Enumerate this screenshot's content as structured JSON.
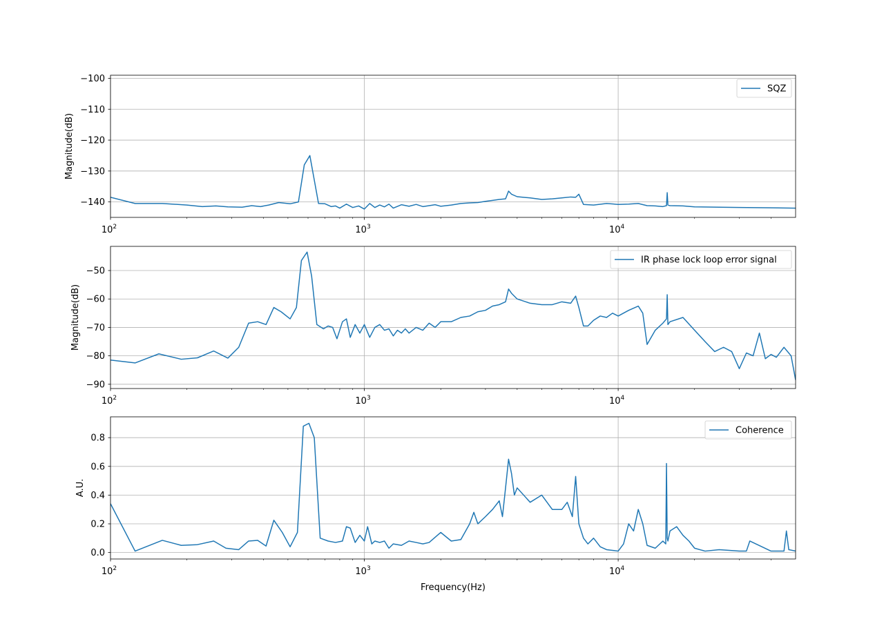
{
  "chart_data": [
    {
      "type": "line",
      "xscale": "log",
      "xlim": [
        100,
        50000
      ],
      "ylim": [
        -145,
        -99
      ],
      "ylabel": "Magnitude(dB)",
      "xlabel": "",
      "grid": true,
      "legend": "top-right",
      "color": "#1f77b4",
      "yticks": [
        -100,
        -110,
        -120,
        -130,
        -140
      ],
      "ytick_labels": [
        "−100",
        "−110",
        "−120",
        "−130",
        "−140"
      ],
      "xticks": [
        100,
        1000,
        10000
      ],
      "xtick_labels": [
        [
          "10",
          "2"
        ],
        [
          "10",
          "3"
        ],
        [
          "10",
          "4"
        ]
      ],
      "series": [
        {
          "name": "SQZ",
          "x": [
            100,
            125,
            160,
            200,
            230,
            260,
            290,
            330,
            360,
            390,
            420,
            460,
            510,
            550,
            580,
            610,
            660,
            700,
            740,
            770,
            800,
            850,
            900,
            950,
            1000,
            1050,
            1100,
            1150,
            1200,
            1250,
            1300,
            1400,
            1500,
            1600,
            1700,
            1800,
            1900,
            2000,
            2200,
            2400,
            2600,
            2800,
            3000,
            3200,
            3400,
            3600,
            3700,
            3800,
            4000,
            4500,
            5000,
            5500,
            6000,
            6500,
            6800,
            7000,
            7300,
            8000,
            9000,
            10000,
            11000,
            12000,
            13000,
            14000,
            15000,
            15500,
            15600,
            15700,
            16000,
            18000,
            20000,
            25000,
            30000,
            40000,
            50000
          ],
          "y": [
            -138.5,
            -140.5,
            -140.5,
            -141,
            -141.5,
            -141.3,
            -141.6,
            -141.7,
            -141.2,
            -141.5,
            -141,
            -140.2,
            -140.6,
            -140,
            -128,
            -125,
            -140.5,
            -140.6,
            -141.5,
            -141.3,
            -142,
            -140.7,
            -141.8,
            -141.3,
            -142.3,
            -140.5,
            -141.8,
            -141,
            -141.6,
            -140.7,
            -142,
            -140.9,
            -141.4,
            -140.8,
            -141.5,
            -141.2,
            -140.9,
            -141.4,
            -141,
            -140.5,
            -140.3,
            -140.2,
            -139.8,
            -139.5,
            -139.2,
            -139,
            -136.5,
            -137.5,
            -138.3,
            -138.7,
            -139.2,
            -139,
            -138.7,
            -138.4,
            -138.5,
            -137.5,
            -140.8,
            -141,
            -140.5,
            -140.8,
            -140.7,
            -140.5,
            -141.2,
            -141.3,
            -141.5,
            -141.2,
            -137,
            -141,
            -141.2,
            -141.3,
            -141.6,
            -141.7,
            -141.8,
            -141.9,
            -142
          ]
        }
      ]
    },
    {
      "type": "line",
      "xscale": "log",
      "xlim": [
        100,
        50000
      ],
      "ylim": [
        -91.5,
        -41.5
      ],
      "ylabel": "Magnitude(dB)",
      "xlabel": "",
      "grid": true,
      "legend": "top-right",
      "color": "#1f77b4",
      "yticks": [
        -50,
        -60,
        -70,
        -80,
        -90
      ],
      "ytick_labels": [
        "−50",
        "−60",
        "−70",
        "−80",
        "−90"
      ],
      "xticks": [
        100,
        1000,
        10000
      ],
      "xtick_labels": [
        [
          "10",
          "2"
        ],
        [
          "10",
          "3"
        ],
        [
          "10",
          "4"
        ]
      ],
      "series": [
        {
          "name": "IR phase lock loop error signal",
          "x": [
            100,
            125,
            155,
            190,
            220,
            255,
            290,
            320,
            350,
            380,
            410,
            440,
            470,
            510,
            540,
            565,
            595,
            620,
            650,
            690,
            720,
            750,
            780,
            820,
            850,
            880,
            920,
            960,
            1000,
            1050,
            1100,
            1150,
            1200,
            1250,
            1300,
            1350,
            1400,
            1450,
            1500,
            1600,
            1700,
            1800,
            1900,
            2000,
            2200,
            2400,
            2600,
            2800,
            3000,
            3200,
            3400,
            3600,
            3700,
            3800,
            4000,
            4500,
            5000,
            5500,
            6000,
            6500,
            6800,
            7000,
            7300,
            7600,
            8000,
            8500,
            9000,
            9500,
            10000,
            11000,
            12000,
            12500,
            13000,
            14000,
            15000,
            15500,
            15600,
            15700,
            16000,
            18000,
            20000,
            22000,
            24000,
            26000,
            28000,
            30000,
            32000,
            34000,
            36000,
            38000,
            40000,
            42000,
            45000,
            48000,
            50000
          ],
          "y": [
            -81.5,
            -82.5,
            -79.3,
            -81.2,
            -80.7,
            -78.3,
            -80.8,
            -77,
            -68.5,
            -68,
            -69,
            -63,
            -64.5,
            -67,
            -63,
            -46.5,
            -43.5,
            -52,
            -69,
            -70.5,
            -69.5,
            -70,
            -74,
            -68,
            -67,
            -73.5,
            -69,
            -72,
            -69,
            -73.5,
            -70,
            -69,
            -71,
            -70.5,
            -73,
            -71,
            -72,
            -70.5,
            -72,
            -70,
            -71,
            -68.5,
            -70,
            -68,
            -68,
            -66.5,
            -66,
            -64.5,
            -64,
            -62.5,
            -62,
            -61,
            -56.5,
            -58,
            -60,
            -61.5,
            -62,
            -62,
            -61,
            -61.5,
            -59,
            -63,
            -69.5,
            -69.5,
            -67.5,
            -66,
            -66.5,
            -65,
            -66,
            -64,
            -62.5,
            -65,
            -76,
            -71,
            -68.5,
            -67,
            -58.5,
            -69,
            -68,
            -66.5,
            -71,
            -75,
            -78.5,
            -77,
            -78.5,
            -84.5,
            -79,
            -80,
            -72,
            -81,
            -79.5,
            -80.5,
            -77,
            -80,
            -88.5
          ]
        }
      ]
    },
    {
      "type": "line",
      "xscale": "log",
      "xlim": [
        100,
        50000
      ],
      "ylim": [
        -0.045,
        0.945
      ],
      "ylabel": "A.U.",
      "xlabel": "Frequency(Hz)",
      "grid": true,
      "legend": "top-right",
      "color": "#1f77b4",
      "yticks": [
        0.0,
        0.2,
        0.4,
        0.6,
        0.8
      ],
      "ytick_labels": [
        "0.0",
        "0.2",
        "0.4",
        "0.6",
        "0.8"
      ],
      "xticks": [
        100,
        1000,
        10000
      ],
      "xtick_labels": [
        [
          "10",
          "2"
        ],
        [
          "10",
          "3"
        ],
        [
          "10",
          "4"
        ]
      ],
      "series": [
        {
          "name": "Coherence",
          "x": [
            100,
            125,
            160,
            190,
            220,
            255,
            285,
            320,
            350,
            380,
            410,
            440,
            475,
            510,
            545,
            575,
            605,
            635,
            670,
            720,
            770,
            820,
            850,
            880,
            920,
            960,
            1000,
            1030,
            1070,
            1100,
            1150,
            1200,
            1250,
            1300,
            1400,
            1500,
            1600,
            1700,
            1800,
            2000,
            2200,
            2400,
            2600,
            2700,
            2800,
            3000,
            3200,
            3400,
            3500,
            3600,
            3700,
            3800,
            3900,
            4000,
            4500,
            5000,
            5500,
            6000,
            6300,
            6600,
            6800,
            7000,
            7300,
            7600,
            8000,
            8500,
            9000,
            10000,
            10500,
            11000,
            11500,
            12000,
            12500,
            13000,
            14000,
            15000,
            15400,
            15500,
            15600,
            15700,
            16000,
            17000,
            18000,
            19000,
            20000,
            22000,
            25000,
            30000,
            32000,
            33000,
            40000,
            45000,
            46000,
            47000,
            50000
          ],
          "y": [
            0.34,
            0.01,
            0.085,
            0.05,
            0.055,
            0.08,
            0.03,
            0.02,
            0.08,
            0.085,
            0.045,
            0.225,
            0.14,
            0.04,
            0.14,
            0.88,
            0.9,
            0.8,
            0.1,
            0.08,
            0.07,
            0.08,
            0.18,
            0.17,
            0.07,
            0.12,
            0.08,
            0.18,
            0.06,
            0.08,
            0.07,
            0.08,
            0.03,
            0.06,
            0.05,
            0.08,
            0.07,
            0.06,
            0.07,
            0.14,
            0.08,
            0.09,
            0.2,
            0.28,
            0.2,
            0.25,
            0.3,
            0.36,
            0.25,
            0.45,
            0.65,
            0.55,
            0.4,
            0.45,
            0.35,
            0.4,
            0.3,
            0.3,
            0.35,
            0.25,
            0.53,
            0.2,
            0.1,
            0.06,
            0.1,
            0.04,
            0.02,
            0.01,
            0.06,
            0.2,
            0.15,
            0.3,
            0.2,
            0.05,
            0.03,
            0.08,
            0.06,
            0.62,
            0.1,
            0.08,
            0.15,
            0.18,
            0.12,
            0.08,
            0.03,
            0.01,
            0.02,
            0.01,
            0.01,
            0.08,
            0.01,
            0.01,
            0.15,
            0.02,
            0.01
          ]
        }
      ]
    }
  ]
}
